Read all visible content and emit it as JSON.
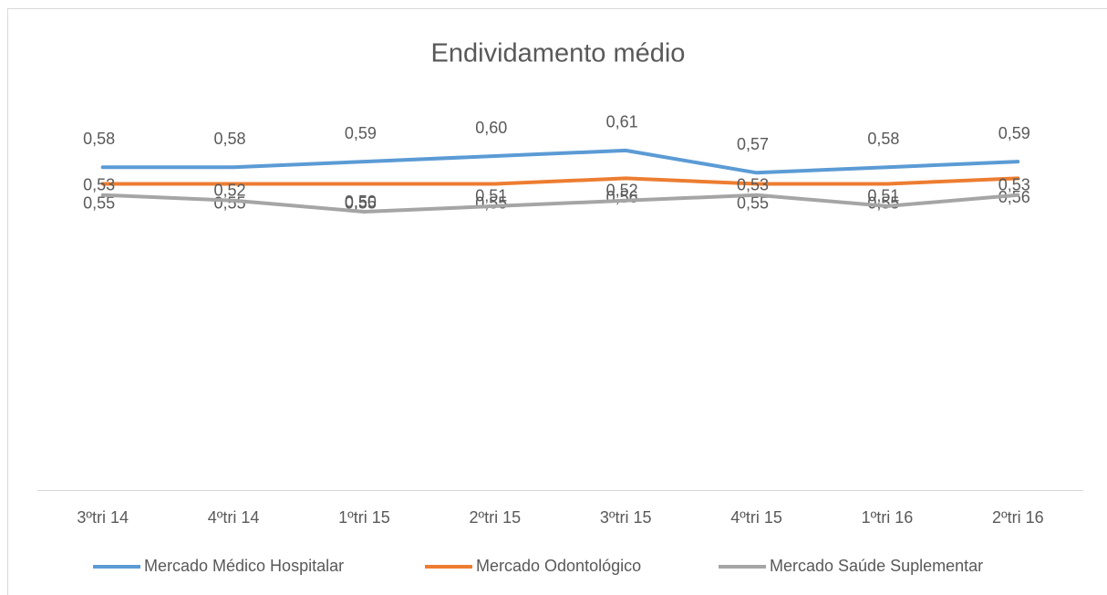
{
  "chart_data": {
    "type": "line",
    "title": "Endividamento médio",
    "categories": [
      "3ºtri 14",
      "4ºtri 14",
      "1ºtri 15",
      "2ºtri 15",
      "3ºtri 15",
      "4ºtri 15",
      "1ºtri 16",
      "2ºtri 16"
    ],
    "ylim": [
      0,
      0.7
    ],
    "series": [
      {
        "name": "Mercado Médico Hospitalar",
        "color": "#5b9bd5",
        "values": [
          0.58,
          0.58,
          0.59,
          0.6,
          0.61,
          0.57,
          0.58,
          0.59
        ],
        "value_labels": [
          "0,58",
          "0,58",
          "0,59",
          "0,60",
          "0,61",
          "0,57",
          "0,58",
          "0,59"
        ]
      },
      {
        "name": "Mercado Odontológico",
        "color": "#ed7d31",
        "values": [
          0.55,
          0.55,
          0.55,
          0.55,
          0.56,
          0.55,
          0.55,
          0.56
        ],
        "value_labels": [
          "0,55",
          "0,55",
          "0,55",
          "0,55",
          "0,56",
          "0,55",
          "0,55",
          "0,56"
        ]
      },
      {
        "name": "Mercado Saúde Suplementar",
        "color": "#a5a5a5",
        "values": [
          0.53,
          0.52,
          0.5,
          0.51,
          0.52,
          0.53,
          0.51,
          0.53
        ],
        "value_labels": [
          "0,53",
          "0,52",
          "0,50",
          "0,51",
          "0,52",
          "0,53",
          "0,51",
          "0,53"
        ]
      }
    ]
  }
}
